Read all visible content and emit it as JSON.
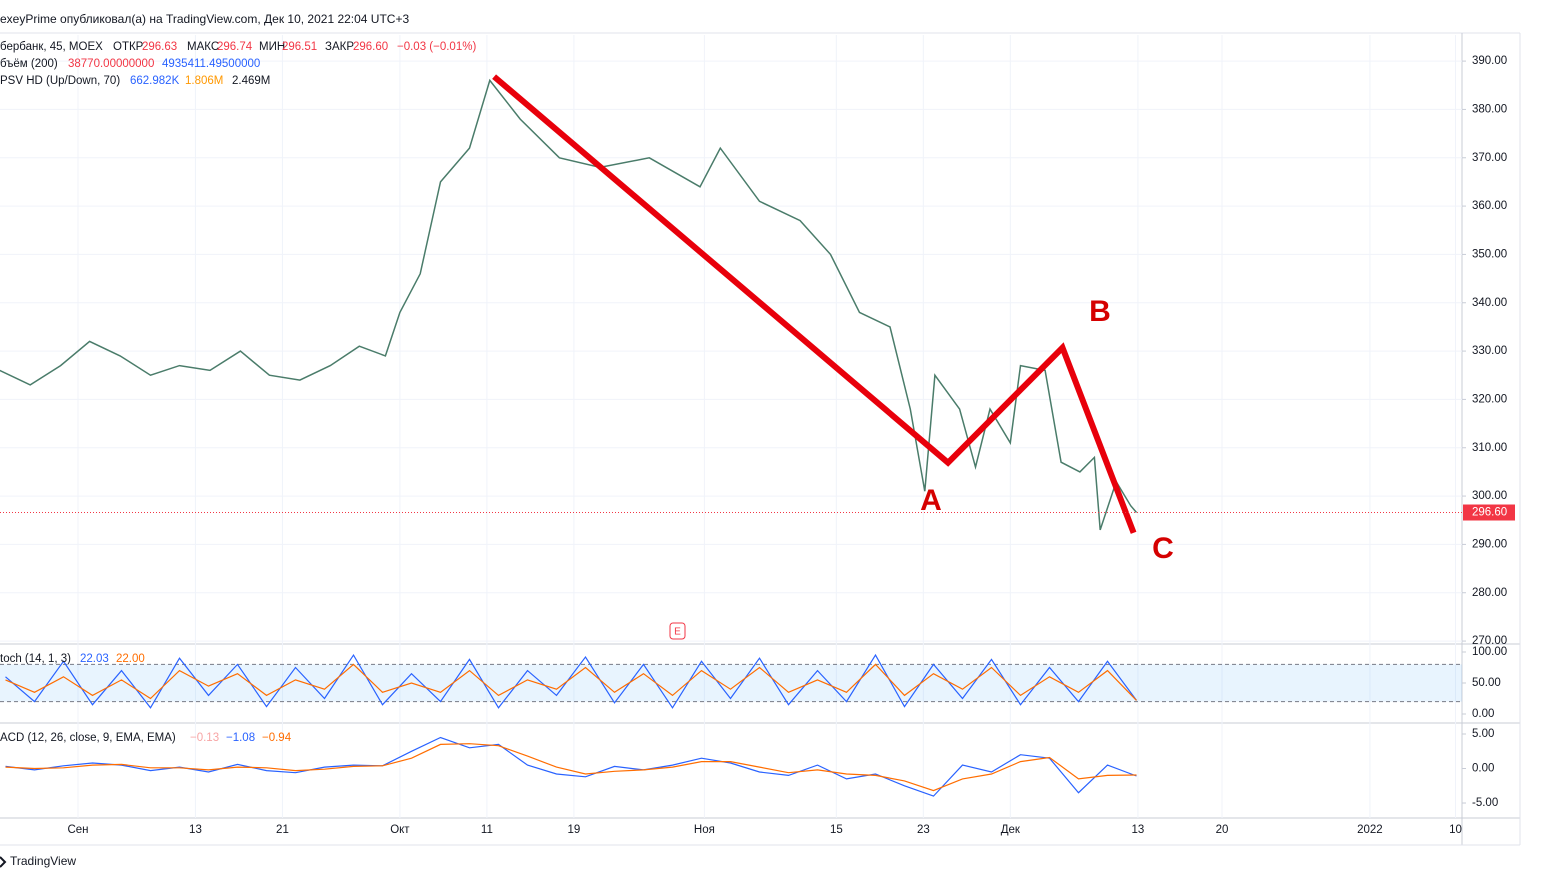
{
  "header": "exeyPrime опубликовал(а) на TradingView.com, Дек 10, 2021 22:04 UTC+3",
  "legend": {
    "symbol": "бербанк, 45, MOEX",
    "open_label": "ОТКР",
    "open": "296.63",
    "high_label": "МАКС",
    "high": "296.74",
    "low_label": "МИН",
    "low": "296.51",
    "close_label": "ЗАКР",
    "close": "296.60",
    "change": "−0.03 (−0.01%)",
    "volume": "бъём (200)",
    "volume_v1": "38770.00000000",
    "volume_v2": "4935411.49500000",
    "vpsv": "PSV HD (Up/Down, 70)",
    "vpsv_v1": "662.982K",
    "vpsv_v2": "1.806M",
    "vpsv_v3": "2.469M"
  },
  "annotations": [
    "A",
    "B",
    "C"
  ],
  "footer": "TradingView",
  "chart_data": [
    {
      "type": "line",
      "name": "price",
      "x": [
        -5.4,
        -3.3,
        -1.2,
        0.8,
        2.9,
        5,
        7,
        9.1,
        11.2,
        13.2,
        15.3,
        17.4,
        19.4,
        21.2,
        22.2,
        23.6,
        25,
        27,
        28.4,
        30.5,
        33.2,
        36,
        39.4,
        42.9,
        44.3,
        47,
        49.8,
        51.9,
        53.9,
        56,
        57.4,
        58.4,
        59.1,
        60.8,
        61.9,
        62.9,
        64.3,
        65,
        66.7,
        67.8,
        69.1,
        70.1,
        70.5,
        71.6,
        72.6,
        73
      ],
      "series": [
        {
          "color": "#4a7c6a",
          "values": [
            326,
            323,
            327,
            332,
            329,
            325,
            327,
            326,
            330,
            325,
            324,
            327,
            331,
            329,
            338,
            346,
            365,
            372,
            386,
            378,
            370,
            368,
            370,
            364,
            372,
            361,
            357,
            350,
            338,
            335,
            318,
            301,
            325,
            318,
            306,
            318,
            311,
            327,
            326,
            307,
            305,
            308,
            293,
            303,
            298,
            296.6
          ]
        }
      ],
      "last_price": {
        "value": 296.6,
        "label": "296.60",
        "color": "#f23645"
      },
      "drawing": {
        "color": "#e8000b",
        "x": [
          28.7,
          60,
          67.9,
          72.8
        ],
        "y": [
          386.8,
          306.9,
          330.7,
          292.4
        ]
      },
      "xlim": [
        -5.38,
        95.45
      ],
      "xticks": [
        {
          "value": 0,
          "label": "Сен"
        },
        {
          "value": 8.1,
          "label": "13"
        },
        {
          "value": 14.1,
          "label": "21"
        },
        {
          "value": 22.2,
          "label": "Окт"
        },
        {
          "value": 28.2,
          "label": "11"
        },
        {
          "value": 34.2,
          "label": "19"
        },
        {
          "value": 43.2,
          "label": "Ноя"
        },
        {
          "value": 52.3,
          "label": "15"
        },
        {
          "value": 58.3,
          "label": "23"
        },
        {
          "value": 64.3,
          "label": "Дек"
        },
        {
          "value": 73.1,
          "label": "13"
        },
        {
          "value": 78.9,
          "label": "20"
        },
        {
          "value": 89.1,
          "label": "2022"
        },
        {
          "value": 95,
          "label": "10"
        }
      ],
      "ylim": [
        269.6,
        395.4
      ],
      "yticks": [
        {
          "value": 270,
          "label": "270.00"
        },
        {
          "value": 280,
          "label": "280.00"
        },
        {
          "value": 290,
          "label": "290.00"
        },
        {
          "value": 300,
          "label": "300.00"
        },
        {
          "value": 310,
          "label": "310.00"
        },
        {
          "value": 320,
          "label": "320.00"
        },
        {
          "value": 330,
          "label": "330.00"
        },
        {
          "value": 340,
          "label": "340.00"
        },
        {
          "value": 350,
          "label": "350.00"
        },
        {
          "value": 360,
          "label": "360.00"
        },
        {
          "value": 370,
          "label": "370.00"
        },
        {
          "value": 380,
          "label": "380.00"
        },
        {
          "value": 390,
          "label": "390.00"
        }
      ],
      "grid": true
    },
    {
      "type": "line",
      "name": "toch (14, 1, 3)",
      "legend_values": [
        {
          "text": "22.03",
          "color": "#2962ff"
        },
        {
          "text": "22.00",
          "color": "#ff6d00"
        }
      ],
      "x": [
        -5,
        -3,
        -1,
        1,
        3,
        5,
        7,
        9,
        11,
        13,
        15,
        17,
        19,
        21,
        23,
        25,
        27,
        29,
        31,
        33,
        35,
        37,
        39,
        41,
        43,
        45,
        47,
        49,
        51,
        53,
        55,
        57,
        59,
        61,
        63,
        65,
        67,
        69,
        71,
        73
      ],
      "series": [
        {
          "color": "#2962ff",
          "values": [
            60,
            20,
            85,
            15,
            70,
            10,
            90,
            30,
            80,
            12,
            75,
            25,
            95,
            15,
            65,
            20,
            88,
            10,
            70,
            30,
            92,
            18,
            80,
            10,
            85,
            25,
            90,
            15,
            70,
            20,
            95,
            12,
            80,
            25,
            88,
            15,
            75,
            20,
            85,
            22
          ]
        },
        {
          "color": "#ff6d00",
          "values": [
            55,
            35,
            60,
            30,
            55,
            25,
            70,
            45,
            65,
            30,
            55,
            40,
            80,
            35,
            50,
            35,
            70,
            30,
            55,
            40,
            75,
            35,
            65,
            30,
            70,
            40,
            75,
            35,
            55,
            35,
            80,
            30,
            65,
            40,
            75,
            30,
            60,
            35,
            70,
            22
          ]
        }
      ],
      "band": [
        20,
        80
      ],
      "xlim": [
        -5.38,
        95.45
      ],
      "ylim": [
        -12.9,
        111.3
      ],
      "yticks": [
        {
          "value": 0,
          "label": "0.00"
        },
        {
          "value": 50,
          "label": "50.00"
        },
        {
          "value": 100,
          "label": "100.00"
        }
      ]
    },
    {
      "type": "line",
      "name": "ACD (12, 26, close, 9, EMA, EMA)",
      "legend_values": [
        {
          "text": "−0.13",
          "color": "#f7a5a5"
        },
        {
          "text": "−1.08",
          "color": "#2962ff"
        },
        {
          "text": "−0.94",
          "color": "#ff6d00"
        }
      ],
      "x": [
        -5,
        -3,
        -1,
        1,
        3,
        5,
        7,
        9,
        11,
        13,
        15,
        17,
        19,
        21,
        23,
        25,
        27,
        29,
        31,
        33,
        35,
        37,
        39,
        41,
        43,
        45,
        47,
        49,
        51,
        53,
        55,
        57,
        59,
        61,
        63,
        65,
        67,
        69,
        71,
        73
      ],
      "series": [
        {
          "color": "#2962ff",
          "values": [
            0.3,
            -0.2,
            0.4,
            0.8,
            0.5,
            -0.3,
            0.2,
            -0.5,
            0.6,
            -0.3,
            -0.6,
            0.2,
            0.5,
            0.4,
            2.5,
            4.5,
            3,
            3.5,
            0.5,
            -0.8,
            -1.2,
            0.3,
            -0.2,
            0.5,
            1.5,
            0.8,
            -0.5,
            -1,
            0.5,
            -1.5,
            -0.8,
            -2.5,
            -4,
            0.5,
            -0.5,
            2,
            1.5,
            -3.5,
            0.5,
            -1.08
          ]
        },
        {
          "color": "#ff6d00",
          "values": [
            0.2,
            0,
            0.1,
            0.5,
            0.6,
            0.1,
            0.1,
            -0.2,
            0.2,
            0.1,
            -0.3,
            -0.1,
            0.3,
            0.4,
            1.5,
            3.5,
            3.6,
            3.3,
            1.8,
            0.2,
            -0.8,
            -0.4,
            -0.2,
            0.2,
            1,
            1,
            0.2,
            -0.6,
            -0.2,
            -0.8,
            -1,
            -1.8,
            -3.2,
            -1.5,
            -0.8,
            1,
            1.6,
            -1.5,
            -1,
            -0.94
          ]
        }
      ],
      "xlim": [
        -5.38,
        95.45
      ],
      "ylim": [
        -7.17,
        6.45
      ],
      "yticks": [
        {
          "value": 5,
          "label": "5.00"
        },
        {
          "value": 0,
          "label": "0.00"
        },
        {
          "value": -5,
          "label": "-5.00"
        }
      ]
    }
  ]
}
